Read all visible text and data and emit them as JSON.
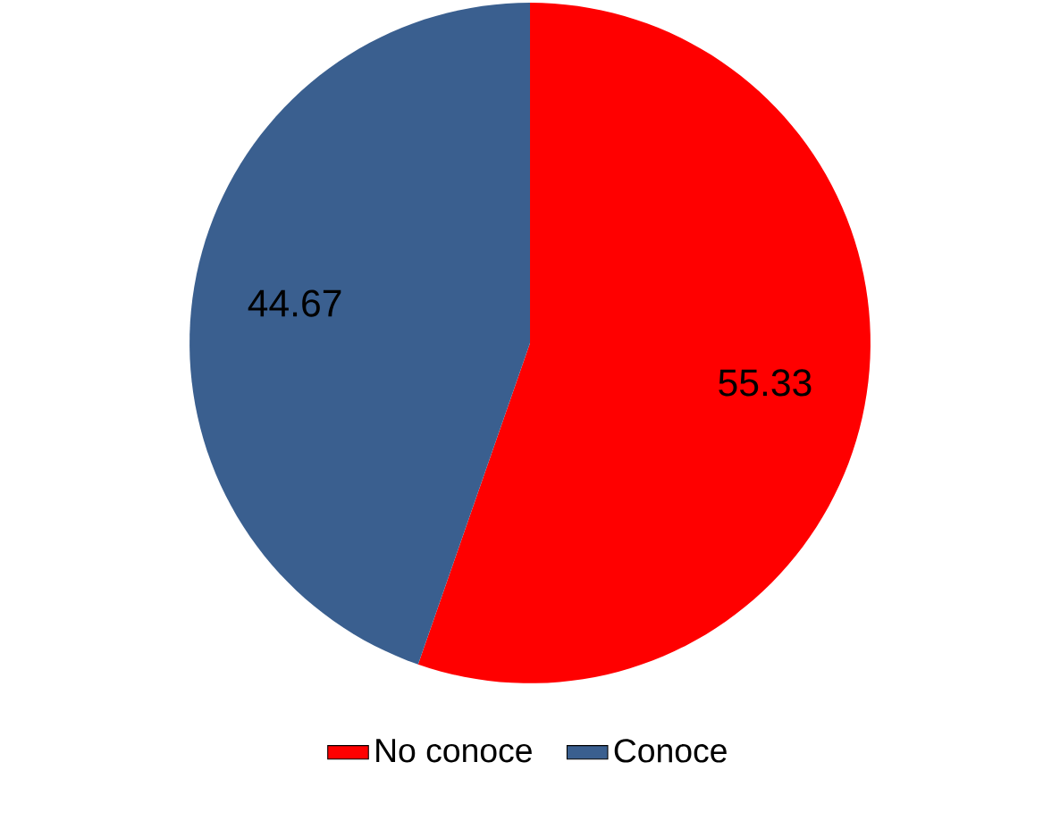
{
  "chart_data": {
    "type": "pie",
    "categories": [
      "No conoce",
      "Conoce"
    ],
    "values": [
      55.33,
      44.67
    ],
    "colors": [
      "#ff0000",
      "#3a5f8f"
    ],
    "data_labels": true,
    "legend": "bottom"
  }
}
